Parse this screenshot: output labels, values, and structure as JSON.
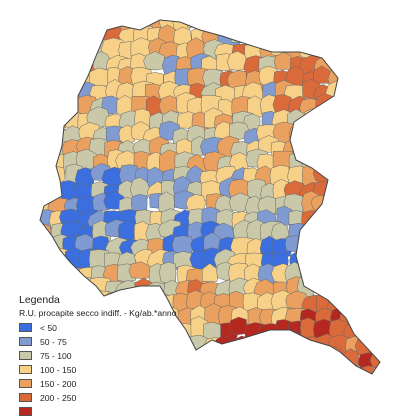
{
  "legend": {
    "title": "Legenda",
    "subtitle": "R.U. procapite secco indiff. - Kg/ab.*anno",
    "items": [
      {
        "label": "< 50",
        "color": "#3b6fe0"
      },
      {
        "label": "50 - 75",
        "color": "#7f9bd1"
      },
      {
        "label": "75 - 100",
        "color": "#c9c9a9"
      },
      {
        "label": "100 - 150",
        "color": "#f6d187"
      },
      {
        "label": "150 - 200",
        "color": "#eaa160"
      },
      {
        "label": "200 - 250",
        "color": "#db6a3a"
      },
      {
        "label": "",
        "color": "#b4281f"
      }
    ]
  },
  "map": {
    "border_color": "#666666",
    "outline_color": "#444444"
  }
}
